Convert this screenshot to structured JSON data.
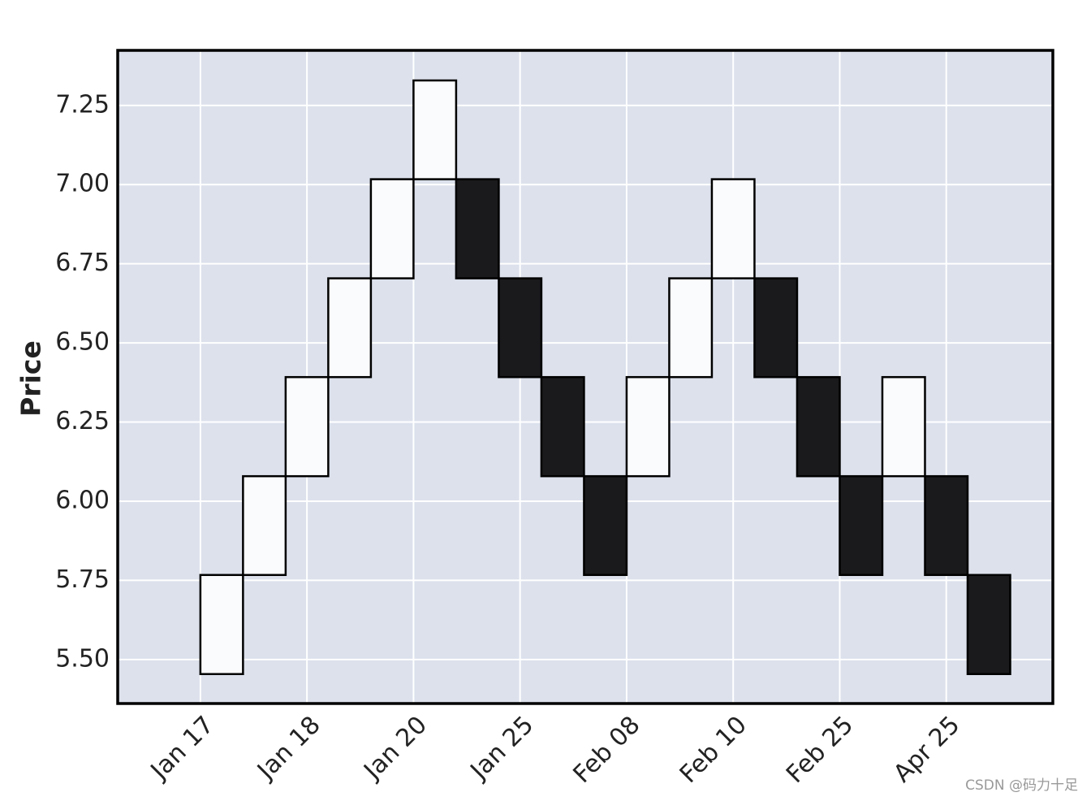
{
  "chart_data": {
    "type": "renko",
    "ylabel": "Price",
    "open": [
      5.454,
      5.767,
      6.079,
      6.392,
      6.704,
      7.017,
      7.017,
      6.704,
      6.392,
      6.079,
      6.079,
      6.392,
      6.704,
      6.704,
      6.392,
      6.079,
      6.079,
      6.079,
      5.767
    ],
    "close": [
      5.767,
      6.079,
      6.392,
      6.704,
      7.017,
      7.329,
      6.704,
      6.392,
      6.079,
      5.767,
      6.392,
      6.704,
      7.017,
      6.392,
      6.079,
      5.767,
      6.392,
      5.767,
      5.454
    ],
    "up_color": "#fafbfd",
    "down_color": "#1a1a1c",
    "background": "#dce1ec",
    "xlim": [
      -1.94,
      20.0
    ],
    "ylim": [
      5.361,
      7.424
    ],
    "xticks": [
      {
        "value": 0,
        "label": "Jan 17"
      },
      {
        "value": 2.5,
        "label": "Jan 18"
      },
      {
        "value": 5,
        "label": "Jan 20"
      },
      {
        "value": 7.5,
        "label": "Jan 25"
      },
      {
        "value": 10,
        "label": "Feb 08"
      },
      {
        "value": 12.5,
        "label": "Feb 10"
      },
      {
        "value": 15,
        "label": "Feb 25"
      },
      {
        "value": 17.5,
        "label": "Apr 25"
      }
    ],
    "yticks": [
      {
        "value": 5.5,
        "label": "5.50"
      },
      {
        "value": 5.75,
        "label": "5.75"
      },
      {
        "value": 6.0,
        "label": "6.00"
      },
      {
        "value": 6.25,
        "label": "6.25"
      },
      {
        "value": 6.5,
        "label": "6.50"
      },
      {
        "value": 6.75,
        "label": "6.75"
      },
      {
        "value": 7.0,
        "label": "7.00"
      },
      {
        "value": 7.25,
        "label": "7.25"
      }
    ],
    "grid": true,
    "watermark": "CSDN @码力十足"
  }
}
